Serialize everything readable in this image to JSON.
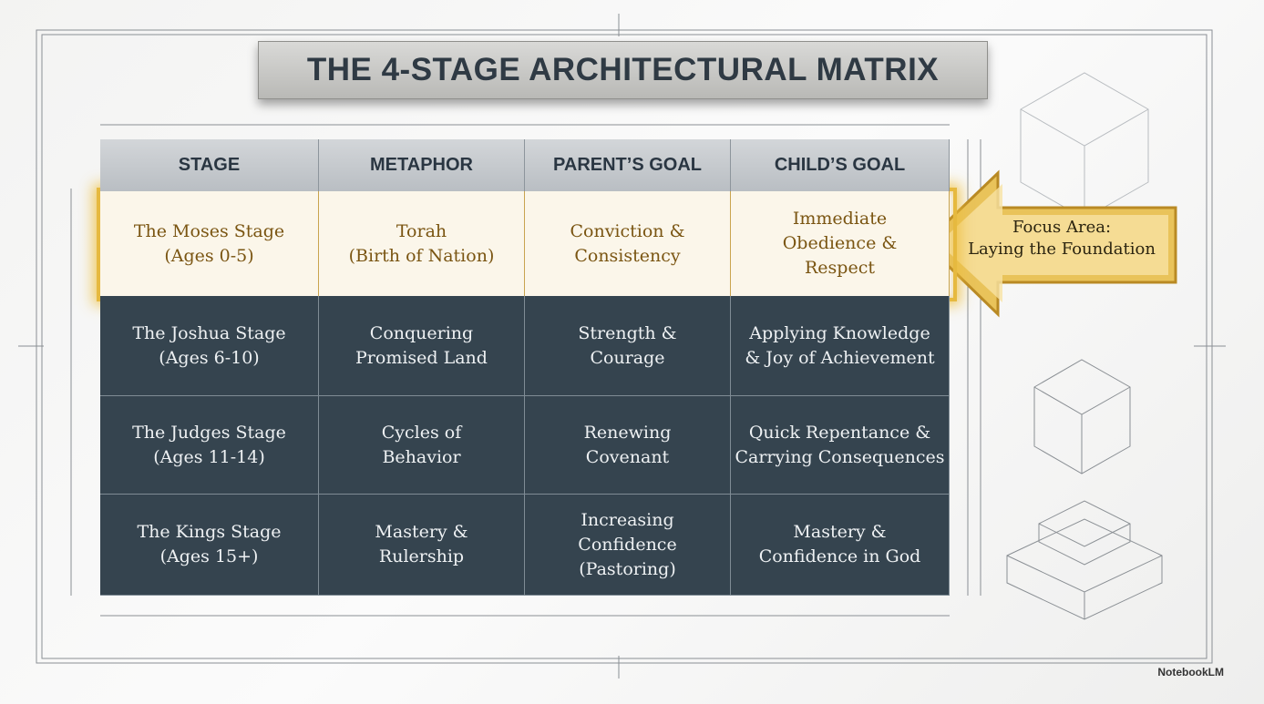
{
  "header": {
    "title": "THE 4-STAGE ARCHITECTURAL MATRIX"
  },
  "table": {
    "columns": [
      "STAGE",
      "METAPHOR",
      "PARENT’S GOAL",
      "CHILD’S GOAL"
    ],
    "rows": [
      [
        [
          "The Moses Stage",
          "(Ages 0-5)"
        ],
        [
          "Torah",
          "(Birth of Nation)"
        ],
        [
          "Conviction &",
          "Consistency"
        ],
        [
          "Immediate",
          "Obedience &",
          "Respect"
        ]
      ],
      [
        [
          "The Joshua Stage",
          "(Ages 6-10)"
        ],
        [
          "Conquering",
          "Promised Land"
        ],
        [
          "Strength &",
          "Courage"
        ],
        [
          "Applying Knowledge",
          "& Joy of Achievement"
        ]
      ],
      [
        [
          "The Judges Stage",
          "(Ages 11-14)"
        ],
        [
          "Cycles of",
          "Behavior"
        ],
        [
          "Renewing",
          "Covenant"
        ],
        [
          "Quick Repentance &",
          "Carrying Consequences"
        ]
      ],
      [
        [
          "The Kings Stage",
          "(Ages 15+)"
        ],
        [
          "Mastery &",
          "Rulership"
        ],
        [
          "Increasing",
          "Confidence",
          "(Pastoring)"
        ],
        [
          "Mastery &",
          "Confidence in God"
        ]
      ]
    ]
  },
  "callout": {
    "lines": [
      "Focus Area:",
      "Laying the Foundation"
    ]
  },
  "watermark": "NotebookLM"
}
